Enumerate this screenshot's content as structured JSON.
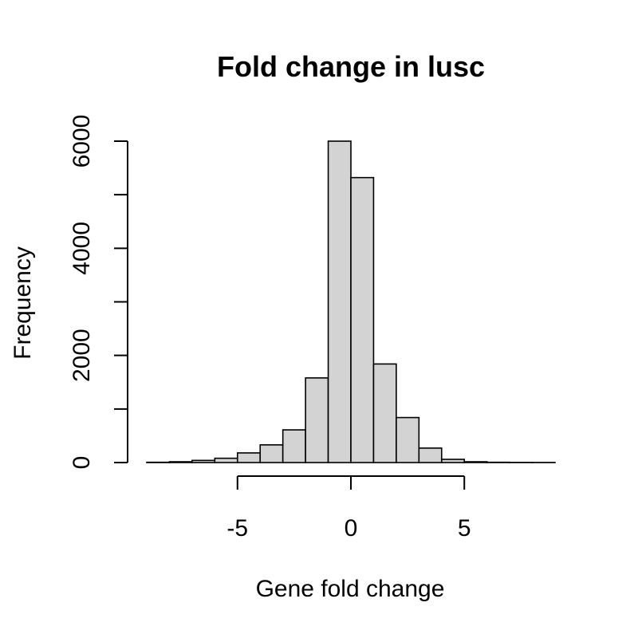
{
  "chart_data": {
    "type": "bar",
    "title": "Fold change in lusc",
    "xlabel": "Gene fold change",
    "ylabel": "Frequency",
    "bin_width": 1,
    "bins": [
      {
        "start": -9,
        "end": -8,
        "count": 5
      },
      {
        "start": -8,
        "end": -7,
        "count": 15
      },
      {
        "start": -7,
        "end": -6,
        "count": 40
      },
      {
        "start": -6,
        "end": -5,
        "count": 80
      },
      {
        "start": -5,
        "end": -4,
        "count": 180
      },
      {
        "start": -4,
        "end": -3,
        "count": 330
      },
      {
        "start": -3,
        "end": -2,
        "count": 610
      },
      {
        "start": -2,
        "end": -1,
        "count": 1580
      },
      {
        "start": -1,
        "end": 0,
        "count": 6000
      },
      {
        "start": 0,
        "end": 1,
        "count": 5320
      },
      {
        "start": 1,
        "end": 2,
        "count": 1840
      },
      {
        "start": 2,
        "end": 3,
        "count": 840
      },
      {
        "start": 3,
        "end": 4,
        "count": 270
      },
      {
        "start": 4,
        "end": 5,
        "count": 60
      },
      {
        "start": 5,
        "end": 6,
        "count": 15
      },
      {
        "start": 6,
        "end": 7,
        "count": 5
      },
      {
        "start": 7,
        "end": 8,
        "count": 3
      },
      {
        "start": 8,
        "end": 9,
        "count": 2
      }
    ],
    "x_ticks": [
      -5,
      0,
      5
    ],
    "x_tick_labels": [
      "-5",
      "0",
      "5"
    ],
    "y_ticks": [
      0,
      1000,
      2000,
      3000,
      4000,
      5000,
      6000
    ],
    "y_tick_labels": [
      "0",
      "",
      "2000",
      "",
      "4000",
      "",
      "6000"
    ],
    "xlim": [
      -9,
      9
    ],
    "ylim": [
      0,
      6000
    ],
    "grid": false,
    "legend": "none"
  }
}
